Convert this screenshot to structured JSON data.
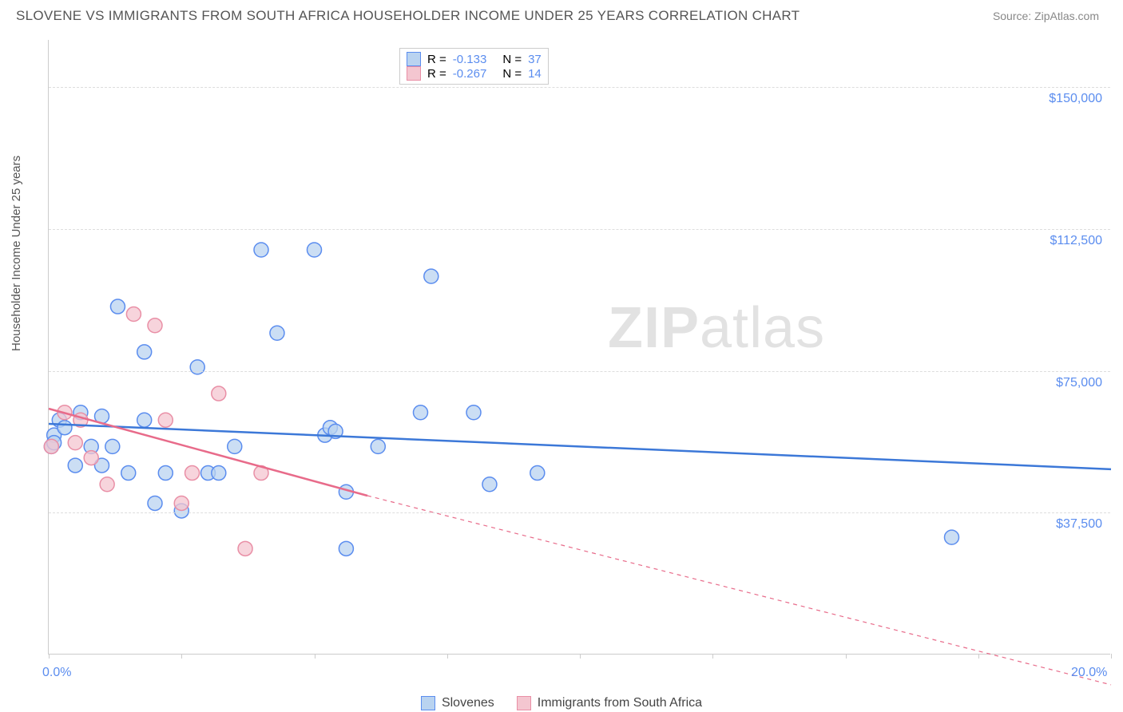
{
  "title": "SLOVENE VS IMMIGRANTS FROM SOUTH AFRICA HOUSEHOLDER INCOME UNDER 25 YEARS CORRELATION CHART",
  "source": "Source: ZipAtlas.com",
  "ylabel": "Householder Income Under 25 years",
  "watermark_zip": "ZIP",
  "watermark_atlas": "atlas",
  "chart": {
    "type": "scatter",
    "xlim": [
      0,
      20
    ],
    "ylim": [
      0,
      162500
    ],
    "xtick_positions": [
      0,
      2.5,
      5,
      7.5,
      10,
      12.5,
      15,
      17.5,
      20
    ],
    "xtick_labels_shown": {
      "0": "0.0%",
      "20": "20.0%"
    },
    "ytick_positions": [
      37500,
      75000,
      112500,
      150000
    ],
    "ytick_labels": [
      "$37,500",
      "$75,000",
      "$112,500",
      "$150,000"
    ],
    "grid_color": "#dddddd",
    "axis_color": "#cccccc",
    "background_color": "#ffffff",
    "marker_radius": 9,
    "marker_stroke_width": 1.5,
    "trend_line_width": 2.5,
    "series": [
      {
        "name": "Slovenes",
        "fill": "#b9d3f0",
        "stroke": "#5b8def",
        "line_color": "#3c78d8",
        "R": "-0.133",
        "N": "37",
        "points": [
          [
            0.05,
            55000
          ],
          [
            0.1,
            58000
          ],
          [
            0.1,
            56000
          ],
          [
            0.2,
            62000
          ],
          [
            0.3,
            60000
          ],
          [
            0.5,
            50000
          ],
          [
            0.6,
            64000
          ],
          [
            0.8,
            55000
          ],
          [
            1.0,
            50000
          ],
          [
            1.0,
            63000
          ],
          [
            1.2,
            55000
          ],
          [
            1.3,
            92000
          ],
          [
            1.5,
            48000
          ],
          [
            1.8,
            80000
          ],
          [
            1.8,
            62000
          ],
          [
            2.0,
            40000
          ],
          [
            2.2,
            48000
          ],
          [
            2.5,
            38000
          ],
          [
            2.8,
            76000
          ],
          [
            3.0,
            48000
          ],
          [
            3.2,
            48000
          ],
          [
            3.5,
            55000
          ],
          [
            4.0,
            107000
          ],
          [
            4.3,
            85000
          ],
          [
            5.0,
            107000
          ],
          [
            5.2,
            58000
          ],
          [
            5.3,
            60000
          ],
          [
            5.4,
            59000
          ],
          [
            5.6,
            28000
          ],
          [
            5.6,
            43000
          ],
          [
            6.2,
            55000
          ],
          [
            7.0,
            64000
          ],
          [
            7.2,
            100000
          ],
          [
            8.0,
            64000
          ],
          [
            8.3,
            45000
          ],
          [
            9.2,
            48000
          ],
          [
            17.0,
            31000
          ]
        ],
        "trend": {
          "x1": 0,
          "y1": 61000,
          "x2": 20,
          "y2": 49000
        }
      },
      {
        "name": "Immigrants from South Africa",
        "fill": "#f4c6d0",
        "stroke": "#e98fa6",
        "line_color": "#e86b8a",
        "R": "-0.267",
        "N": "14",
        "points": [
          [
            0.05,
            55000
          ],
          [
            0.3,
            64000
          ],
          [
            0.5,
            56000
          ],
          [
            0.6,
            62000
          ],
          [
            0.8,
            52000
          ],
          [
            1.1,
            45000
          ],
          [
            1.6,
            90000
          ],
          [
            2.0,
            87000
          ],
          [
            2.2,
            62000
          ],
          [
            2.5,
            40000
          ],
          [
            2.7,
            48000
          ],
          [
            3.2,
            69000
          ],
          [
            3.7,
            28000
          ],
          [
            4.0,
            48000
          ]
        ],
        "trend_solid": {
          "x1": 0,
          "y1": 65000,
          "x2": 6,
          "y2": 42000
        },
        "trend_dashed": {
          "x1": 6,
          "y1": 42000,
          "x2": 20,
          "y2": -8000
        }
      }
    ]
  },
  "top_legend": {
    "rows": [
      {
        "swatch_fill": "#b9d3f0",
        "swatch_stroke": "#5b8def",
        "R_label": "R =",
        "R_val": "-0.133",
        "N_label": "N =",
        "N_val": "37"
      },
      {
        "swatch_fill": "#f4c6d0",
        "swatch_stroke": "#e98fa6",
        "R_label": "R =",
        "R_val": "-0.267",
        "N_label": "N =",
        "N_val": "14"
      }
    ]
  },
  "bottom_legend": {
    "items": [
      {
        "swatch_fill": "#b9d3f0",
        "swatch_stroke": "#5b8def",
        "label": "Slovenes"
      },
      {
        "swatch_fill": "#f4c6d0",
        "swatch_stroke": "#e98fa6",
        "label": "Immigrants from South Africa"
      }
    ]
  }
}
